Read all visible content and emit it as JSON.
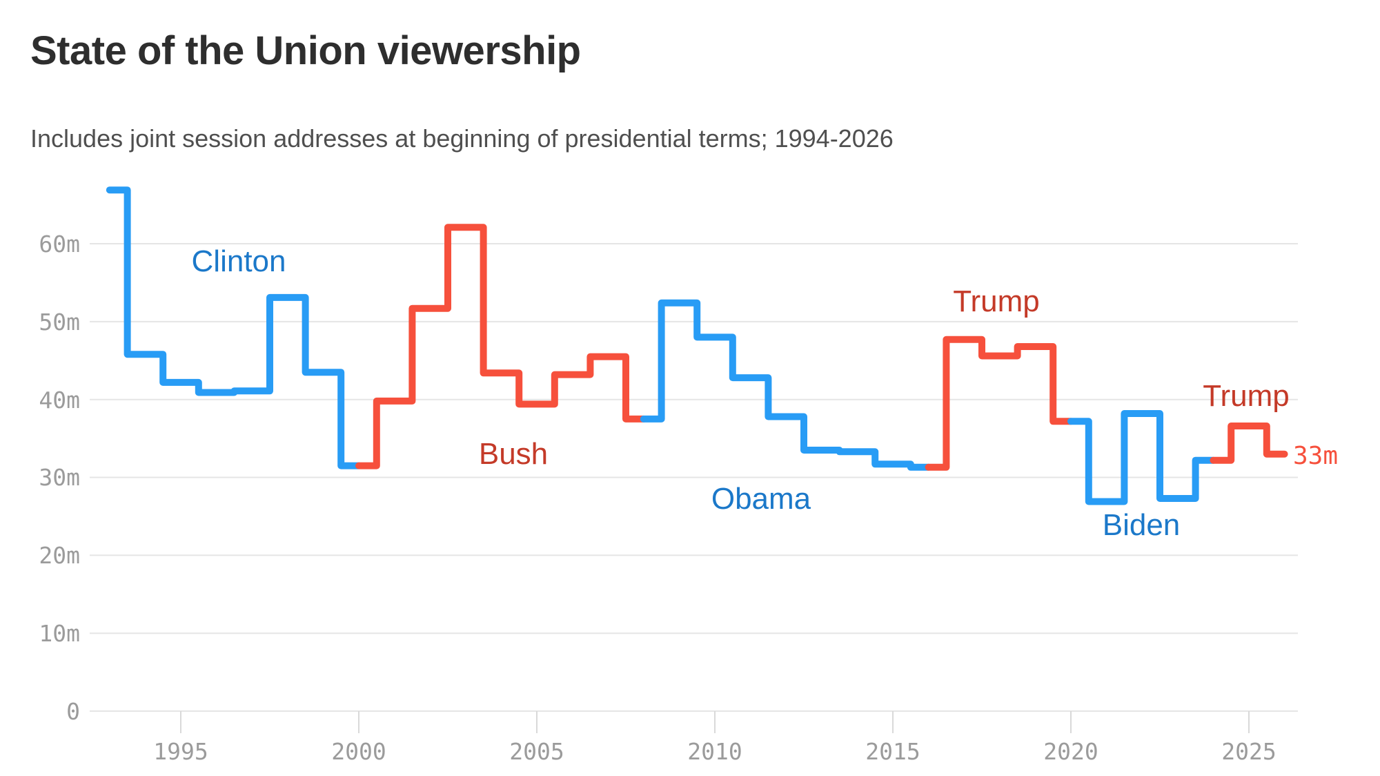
{
  "header": {
    "title": "State of the Union viewership",
    "subtitle": "Includes joint session addresses at beginning of presidential terms; 1994-2026"
  },
  "chart_data": {
    "type": "line",
    "subtype": "step-center",
    "title": "State of the Union viewership",
    "unit": "millions of viewers",
    "grid": "horizontal",
    "legend_position": "none",
    "xlim": [
      1993,
      2026
    ],
    "ylim": [
      0,
      67
    ],
    "x_tick_values": [
      1995,
      2000,
      2005,
      2010,
      2015,
      2020,
      2025
    ],
    "x_tick_labels": [
      "1995",
      "2000",
      "2005",
      "2010",
      "2015",
      "2020",
      "2025"
    ],
    "y_tick_values": [
      0,
      10,
      20,
      30,
      40,
      50,
      60
    ],
    "y_tick_labels": [
      "0",
      "10m",
      "20m",
      "30m",
      "40m",
      "50m",
      "60m"
    ],
    "series": [
      {
        "name": "Clinton",
        "party": "D",
        "x": [
          1993,
          1994,
          1995,
          1996,
          1997,
          1998,
          1999,
          2000
        ],
        "values": [
          66.9,
          45.8,
          42.2,
          40.9,
          41.1,
          53.1,
          43.5,
          31.5
        ]
      },
      {
        "name": "Bush",
        "party": "R",
        "x": [
          2000,
          2001,
          2002,
          2003,
          2004,
          2005,
          2006,
          2007,
          2008
        ],
        "values": [
          31.5,
          39.8,
          51.7,
          62.1,
          43.4,
          39.4,
          43.2,
          45.5,
          37.5
        ]
      },
      {
        "name": "Obama",
        "party": "D",
        "x": [
          2008,
          2009,
          2010,
          2011,
          2012,
          2013,
          2014,
          2015,
          2016
        ],
        "values": [
          37.5,
          52.4,
          48.0,
          42.8,
          37.8,
          33.5,
          33.3,
          31.7,
          31.3
        ]
      },
      {
        "name": "Trump",
        "party": "R",
        "x": [
          2016,
          2017,
          2018,
          2019,
          2020
        ],
        "values": [
          31.3,
          47.7,
          45.6,
          46.8,
          37.2
        ]
      },
      {
        "name": "Biden",
        "party": "D",
        "x": [
          2020,
          2021,
          2022,
          2023,
          2024
        ],
        "values": [
          37.2,
          26.9,
          38.2,
          27.3,
          32.2
        ]
      },
      {
        "name": "Trump",
        "party": "R",
        "x": [
          2024,
          2025,
          2026
        ],
        "values": [
          32.2,
          36.6,
          33
        ]
      }
    ],
    "annotations": [
      {
        "text": "Clinton",
        "party": "D"
      },
      {
        "text": "Bush",
        "party": "R"
      },
      {
        "text": "Obama",
        "party": "D"
      },
      {
        "text": "Trump",
        "party": "R"
      },
      {
        "text": "Biden",
        "party": "D"
      },
      {
        "text": "Trump",
        "party": "R"
      }
    ],
    "end_label": {
      "text": "33m",
      "value": 33,
      "year": 2026
    },
    "colors": {
      "democrat_line": "#289CF5",
      "republican_line": "#F6503C",
      "democrat_label": "#1B78C9",
      "republican_label": "#C43A28",
      "end_label": "#F6503C",
      "axis_text": "#9B9B9B",
      "gridline": "#E5E5E5",
      "tick": "#D9D9D9",
      "title": "#2E2E2E",
      "subtitle": "#4F4F4F",
      "background": "#FFFFFF"
    }
  }
}
